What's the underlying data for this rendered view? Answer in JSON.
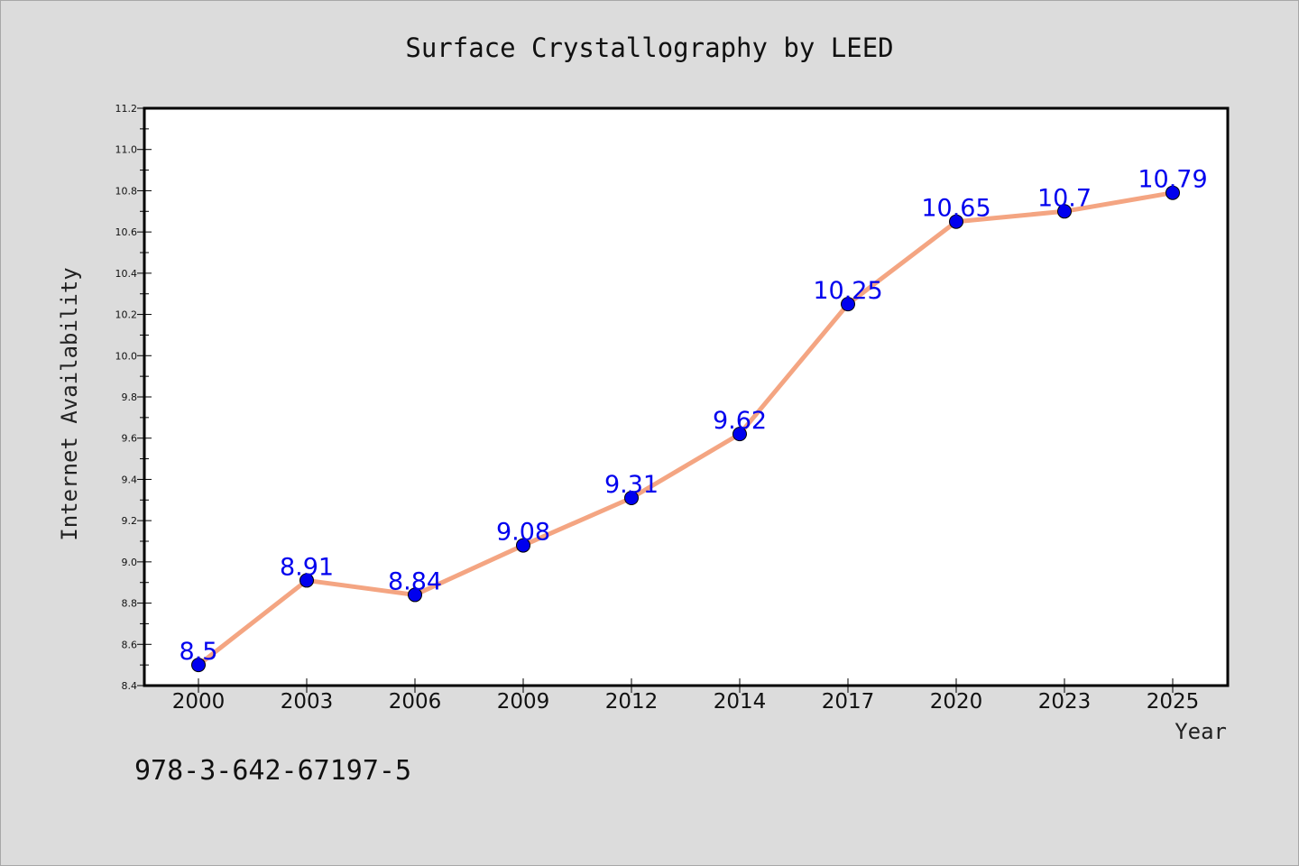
{
  "chart_data": {
    "type": "line",
    "title": "Surface Crystallography by LEED",
    "xlabel": "Year",
    "ylabel": "Internet Availability",
    "categories": [
      "2000",
      "2003",
      "2006",
      "2009",
      "2012",
      "2014",
      "2017",
      "2020",
      "2023",
      "2025"
    ],
    "series": [
      {
        "values": [
          8.5,
          8.91,
          8.84,
          9.08,
          9.31,
          9.62,
          10.25,
          10.65,
          10.7,
          10.79
        ],
        "labels": [
          "8.5",
          "8.91",
          "8.84",
          "9.08",
          "9.31",
          "9.62",
          "10.25",
          "10.65",
          "10.7",
          "10.79"
        ],
        "line_color": "#f4a582",
        "marker_color": "#0000ee"
      }
    ],
    "ylim": [
      8.4,
      11.2
    ],
    "yticks": [
      "8.4",
      "8.6",
      "8.8",
      "9.0",
      "9.2",
      "9.4",
      "9.6",
      "9.8",
      "10.0",
      "10.2",
      "10.4",
      "10.6",
      "10.8",
      "11.0",
      "11.2"
    ],
    "grid": false,
    "legend": "none"
  },
  "footer": {
    "identifier": "978-3-642-67197-5"
  },
  "colors": {
    "background": "#dcdcdc",
    "plot_background": "#ffffff",
    "data_label": "#0000ee"
  }
}
